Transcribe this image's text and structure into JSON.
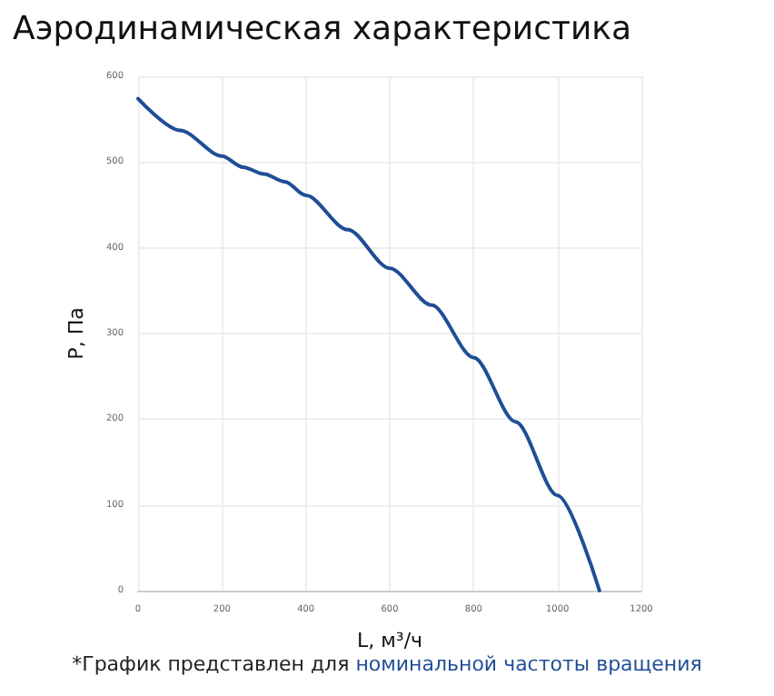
{
  "chart_data": {
    "type": "line",
    "title": "Аэродинамическая характеристика",
    "xlabel": "L, м³/ч",
    "ylabel": "P, Па",
    "annotations": [
      "*График представлен для ",
      "номинальной частоты вращения"
    ],
    "series": [
      {
        "color": "#1f4e96",
        "x": [
          0,
          100,
          200,
          250,
          300,
          350,
          400,
          500,
          600,
          700,
          800,
          900,
          1000,
          1100
        ],
        "values": [
          574,
          537,
          507,
          494,
          486,
          477,
          461,
          421,
          376,
          333,
          272,
          197,
          111,
          0
        ]
      }
    ],
    "xlim": [
      0,
      1200
    ],
    "xticks": [
      0,
      200,
      400,
      600,
      800,
      1000,
      1200
    ],
    "ylim": [
      0,
      600
    ],
    "yticks": [
      0,
      100,
      200,
      300,
      400,
      500,
      600
    ],
    "grid": true,
    "marker": "none",
    "line_style": "solid"
  }
}
